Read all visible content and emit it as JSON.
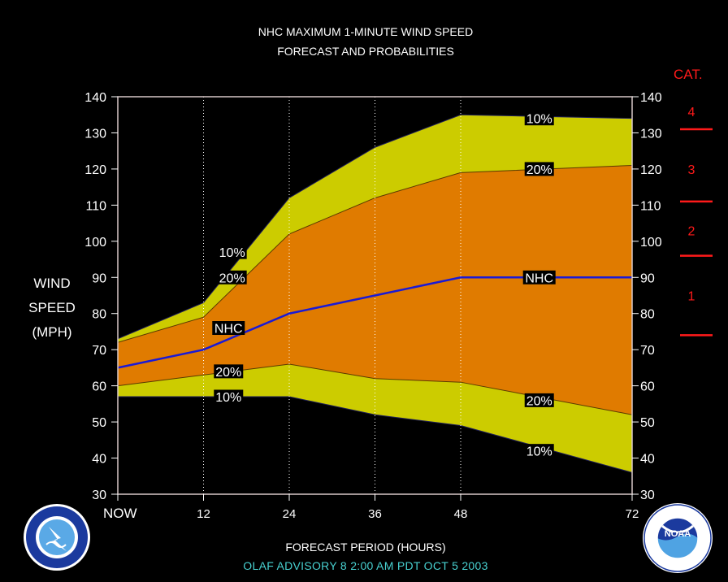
{
  "title_line1": "NHC MAXIMUM 1-MINUTE WIND SPEED",
  "title_line2": "FORECAST AND PROBABILITIES",
  "ylabel_lines": [
    "WIND",
    "SPEED",
    "(MPH)"
  ],
  "xlabel": "FORECAST PERIOD (HOURS)",
  "advisory": "OLAF   ADVISORY  8  2:00  AM  PDT  OCT  5  2003",
  "category_header": "CAT.",
  "colors": {
    "background": "#000000",
    "outer_band": "#cccc00",
    "inner_band": "#e07b00",
    "nhc_line": "#1a1ad6",
    "category_marks": "#ff1a1a",
    "advisory_text": "#48d1d1"
  },
  "chart_data": {
    "type": "area",
    "x_ticks": [
      0,
      12,
      24,
      36,
      48,
      72
    ],
    "x_tick_labels": [
      "NOW",
      "12",
      "24",
      "36",
      "48",
      "72"
    ],
    "y_ticks": [
      30,
      40,
      50,
      60,
      70,
      80,
      90,
      100,
      110,
      120,
      130,
      140
    ],
    "ylim": [
      30,
      140
    ],
    "xlim": [
      0,
      72
    ],
    "grid": "vertical dotted at 12, 24, 36, 48",
    "x": [
      0,
      12,
      24,
      36,
      48,
      72
    ],
    "series": [
      {
        "name": "10%",
        "role": "upper",
        "values": [
          73,
          83,
          112,
          126,
          135,
          134
        ]
      },
      {
        "name": "20%",
        "role": "upper",
        "values": [
          72,
          79,
          102,
          112,
          119,
          121
        ]
      },
      {
        "name": "NHC",
        "role": "forecast",
        "values": [
          65,
          70,
          80,
          85,
          90,
          90
        ]
      },
      {
        "name": "20%",
        "role": "lower",
        "values": [
          60,
          63,
          66,
          62,
          61,
          52
        ]
      },
      {
        "name": "10%",
        "role": "lower",
        "values": [
          57,
          57,
          57,
          52,
          49,
          36
        ]
      }
    ],
    "labels": [
      {
        "text": "10%",
        "x": 16,
        "y": 97
      },
      {
        "text": "20%",
        "x": 16,
        "y": 90
      },
      {
        "text": "NHC",
        "x": 15.5,
        "y": 76
      },
      {
        "text": "20%",
        "x": 15.5,
        "y": 64
      },
      {
        "text": "10%",
        "x": 15.5,
        "y": 57
      },
      {
        "text": "10%",
        "x": 59,
        "y": 134
      },
      {
        "text": "20%",
        "x": 59,
        "y": 120
      },
      {
        "text": "NHC",
        "x": 59,
        "y": 90
      },
      {
        "text": "20%",
        "x": 59,
        "y": 56
      },
      {
        "text": "10%",
        "x": 59,
        "y": 42
      }
    ],
    "categories": [
      {
        "label": "4",
        "y": 136
      },
      {
        "label": "3",
        "y": 120
      },
      {
        "label": "2",
        "y": 103
      },
      {
        "label": "1",
        "y": 85
      }
    ],
    "category_thresholds": [
      131,
      111,
      96,
      74
    ]
  }
}
